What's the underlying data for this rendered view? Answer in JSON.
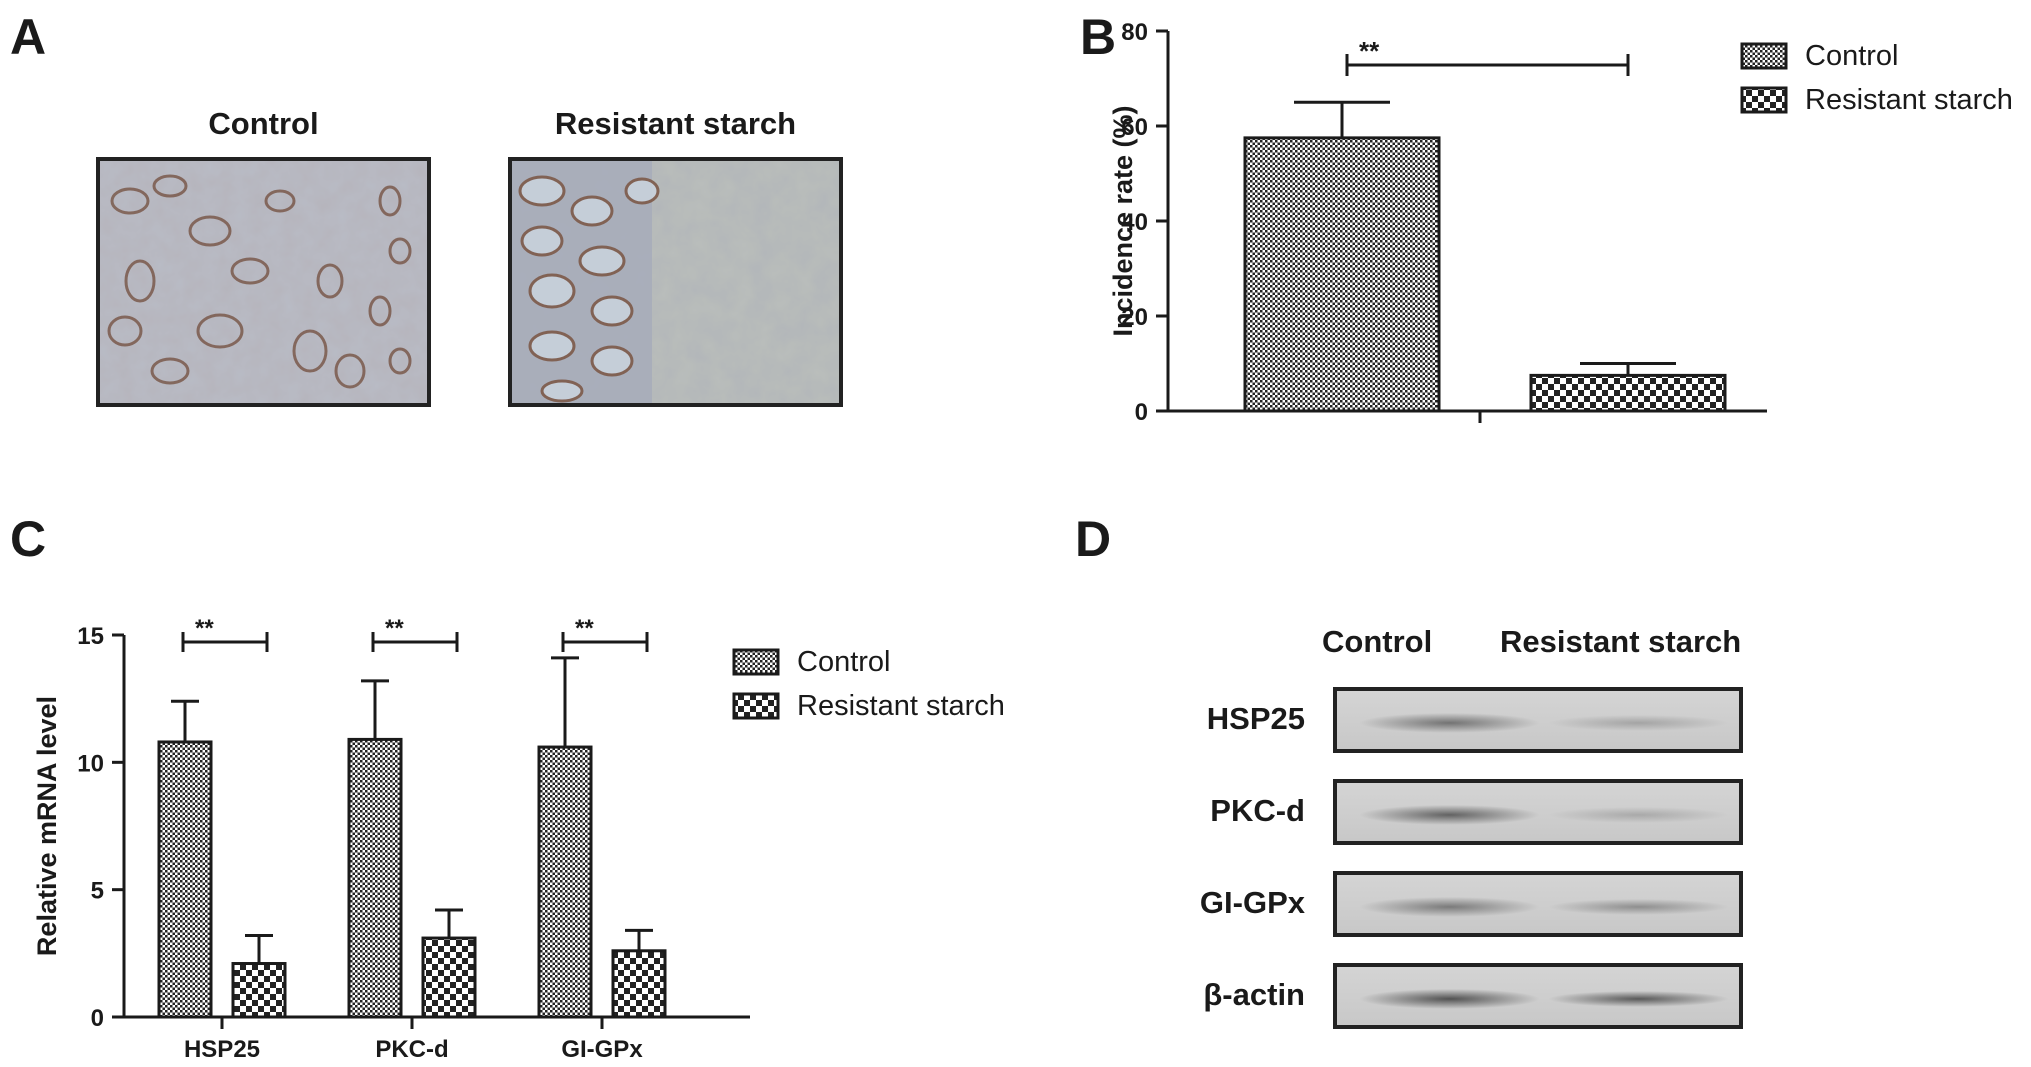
{
  "panels": {
    "a": {
      "letter": "A",
      "titles": [
        "Control",
        "Resistant starch"
      ]
    },
    "b": {
      "letter": "B"
    },
    "c": {
      "letter": "C"
    },
    "d": {
      "letter": "D",
      "columns": [
        "Control",
        "Resistant starch"
      ],
      "rows": [
        {
          "label": "HSP25",
          "control_intensity": 0.55,
          "rs_intensity": 0.25
        },
        {
          "label": "PKC-d",
          "control_intensity": 0.65,
          "rs_intensity": 0.22
        },
        {
          "label": "GI-GPx",
          "control_intensity": 0.5,
          "rs_intensity": 0.38
        },
        {
          "label": "β-actin",
          "control_intensity": 0.75,
          "rs_intensity": 0.7
        }
      ]
    }
  },
  "colors": {
    "ink": "#1a1a1a",
    "bar_fill": "#ffffff",
    "pattern": "#222222"
  },
  "chart_data": [
    {
      "type": "bar",
      "ylabel": "Incidence rate (%)",
      "ylim": [
        0,
        80
      ],
      "yticks": [
        0,
        20,
        40,
        60,
        80
      ],
      "series": [
        {
          "name": "Control",
          "value": 57.5,
          "error": 7.5,
          "pattern": "fine"
        },
        {
          "name": "Resistant starch",
          "value": 7.5,
          "error": 2.5,
          "pattern": "check"
        }
      ],
      "significance": "**",
      "legend": "top-right"
    },
    {
      "type": "bar",
      "ylabel": "Relative mRNA level",
      "ylim": [
        0,
        15
      ],
      "yticks": [
        0,
        5,
        10,
        15
      ],
      "categories": [
        "HSP25",
        "PKC-d",
        "GI-GPx"
      ],
      "series": [
        {
          "name": "Control",
          "values": [
            10.8,
            10.9,
            10.6
          ],
          "errors": [
            1.6,
            2.3,
            3.5
          ],
          "pattern": "fine"
        },
        {
          "name": "Resistant starch",
          "values": [
            2.1,
            3.1,
            2.6
          ],
          "errors": [
            1.1,
            1.1,
            0.8
          ],
          "pattern": "check"
        }
      ],
      "significance": [
        "**",
        "**",
        "**"
      ],
      "legend": "right"
    }
  ]
}
